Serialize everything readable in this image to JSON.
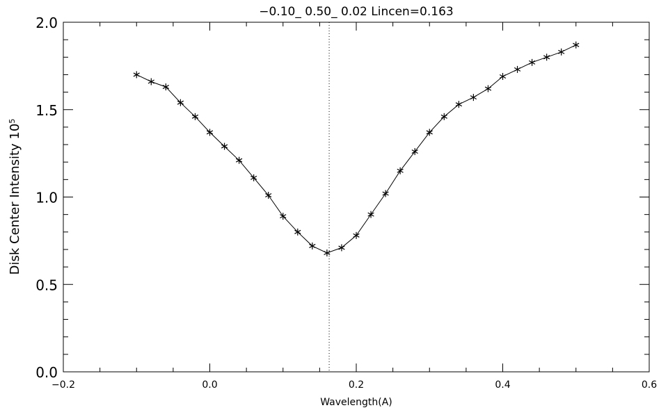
{
  "chart_data": {
    "type": "line",
    "title": "−0.10_ 0.50_ 0.02   Lincen=0.163",
    "xlabel": "Wavelength(A)",
    "ylabel": "Disk Center Intensity 10",
    "ylabel_sup": "5",
    "xlim": [
      -0.2,
      0.6
    ],
    "ylim": [
      0.0,
      2.0
    ],
    "xticks": [
      -0.2,
      0.0,
      0.2,
      0.4,
      0.6
    ],
    "xtick_labels": [
      "−0.2",
      "0.0",
      "0.2",
      "0.4",
      "0.6"
    ],
    "yticks": [
      0.0,
      0.5,
      1.0,
      1.5,
      2.0
    ],
    "ytick_labels": [
      "0.0",
      "0.5",
      "1.0",
      "1.5",
      "2.0"
    ],
    "marker": "asterisk",
    "vline": 0.163,
    "series": [
      {
        "x": [
          -0.1,
          -0.08,
          -0.06,
          -0.04,
          -0.02,
          0.0,
          0.02,
          0.04,
          0.06,
          0.08,
          0.1,
          0.12,
          0.14,
          0.16,
          0.18,
          0.2,
          0.22,
          0.24,
          0.26,
          0.28,
          0.3,
          0.32,
          0.34,
          0.36,
          0.38,
          0.4,
          0.42,
          0.44,
          0.46,
          0.48,
          0.5
        ],
        "y": [
          1.7,
          1.66,
          1.63,
          1.54,
          1.46,
          1.37,
          1.29,
          1.21,
          1.11,
          1.01,
          0.89,
          0.8,
          0.72,
          0.68,
          0.71,
          0.78,
          0.9,
          1.02,
          1.15,
          1.26,
          1.37,
          1.46,
          1.53,
          1.57,
          1.62,
          1.69,
          1.73,
          1.77,
          1.8,
          1.83,
          1.87
        ]
      }
    ]
  }
}
